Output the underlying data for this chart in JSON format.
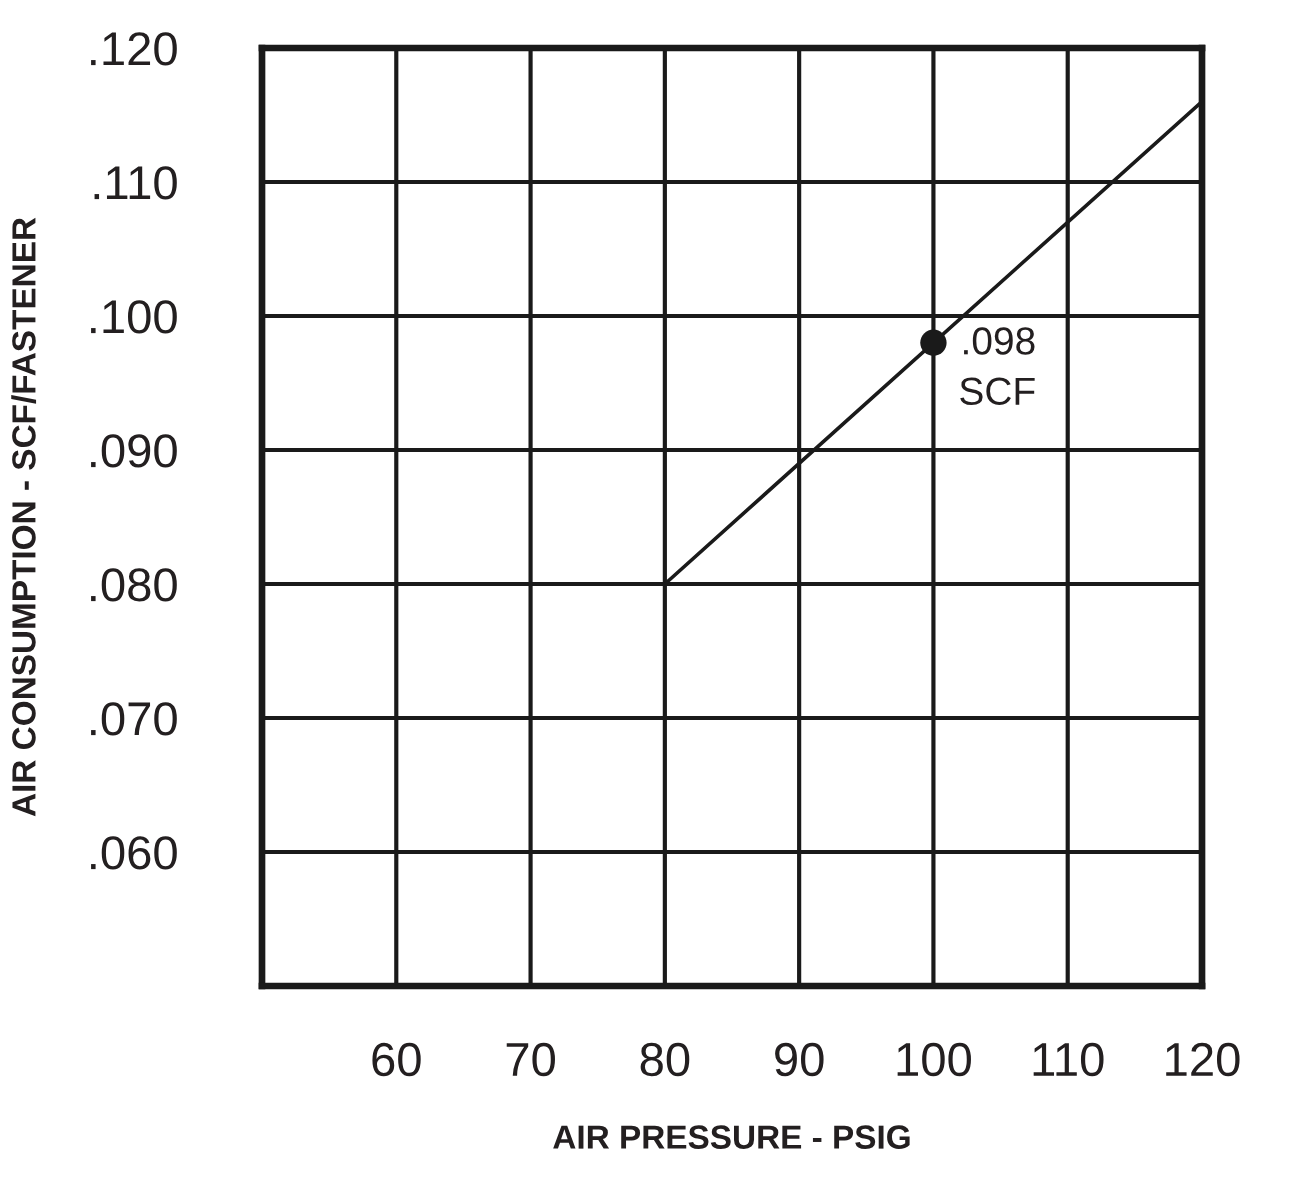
{
  "chart_data": {
    "type": "line",
    "xlabel": "AIR PRESSURE - PSIG",
    "ylabel": "AIR CONSUMPTION - SCF/FASTENER",
    "series": [
      {
        "color": "#1a1a1a",
        "x": [
          80,
          120
        ],
        "values": [
          0.08,
          0.116
        ],
        "marker": "none",
        "line_style": "solid"
      },
      {
        "type": "scatter",
        "color": "#1a1a1a",
        "x": [
          100
        ],
        "values": [
          0.098
        ],
        "marker": "circle"
      }
    ],
    "xlim": [
      50,
      120
    ],
    "xticks": [
      60,
      70,
      80,
      90,
      100,
      110,
      120
    ],
    "ylim": [
      0.05,
      0.12
    ],
    "yticks": [
      {
        "value": 0.06,
        "label": ".060"
      },
      {
        "value": 0.07,
        "label": ".070"
      },
      {
        "value": 0.08,
        "label": ".080"
      },
      {
        "value": 0.09,
        "label": ".090"
      },
      {
        "value": 0.1,
        "label": ".100"
      },
      {
        "value": 0.11,
        "label": ".110"
      },
      {
        "value": 0.12,
        "label": ".120"
      }
    ],
    "grid": true,
    "annotations": [
      {
        "text": ".098\nSCF",
        "x": 100,
        "y": 0.098
      }
    ]
  }
}
